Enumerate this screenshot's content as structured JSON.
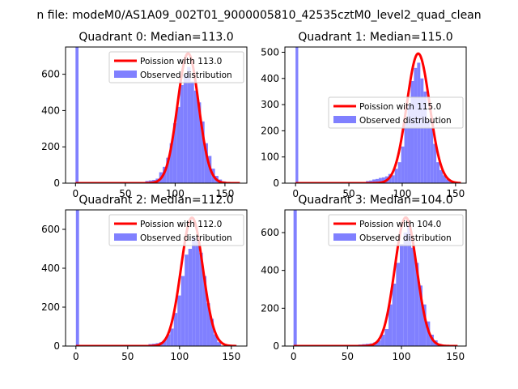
{
  "figure": {
    "suptitle": "n file: modeM0/AS1A09_002T01_9000005810_42535cztM0_level2_quad_clean"
  },
  "colors": {
    "hist": "#8080ff",
    "poisson": "#ff0000",
    "axis": "#000000",
    "legend_border": "#cccccc"
  },
  "chart_data": [
    {
      "type": "histogram+line",
      "title": "Quadrant 0: Median=113.0",
      "xlim": [
        -10,
        172
      ],
      "ylim": [
        0,
        750
      ],
      "xticks": [
        0,
        50,
        100,
        150
      ],
      "xtick_labels": [
        "0",
        "50",
        "100",
        "150"
      ],
      "yticks": [
        0,
        200,
        400,
        600
      ],
      "ytick_labels": [
        "0",
        "200",
        "400",
        "600"
      ],
      "legend": {
        "position": "upper right",
        "entries": [
          "Poission with 113.0",
          "Observed distribution"
        ]
      },
      "poisson_mean": 113.0,
      "poisson_peak": 715,
      "line_x_range": [
        0,
        165
      ],
      "zero_bin": {
        "x0": 0,
        "x1": 3,
        "value": 750
      },
      "bin_width": 3.5,
      "bins": [
        {
          "x": 70,
          "v": 12
        },
        {
          "x": 73.5,
          "v": 15
        },
        {
          "x": 77,
          "v": 18
        },
        {
          "x": 80.5,
          "v": 25
        },
        {
          "x": 84,
          "v": 60
        },
        {
          "x": 87.5,
          "v": 90
        },
        {
          "x": 91,
          "v": 140
        },
        {
          "x": 94.5,
          "v": 220
        },
        {
          "x": 98,
          "v": 330
        },
        {
          "x": 101.5,
          "v": 420
        },
        {
          "x": 105,
          "v": 540
        },
        {
          "x": 108.5,
          "v": 600
        },
        {
          "x": 112,
          "v": 640
        },
        {
          "x": 115.5,
          "v": 560
        },
        {
          "x": 119,
          "v": 510
        },
        {
          "x": 122.5,
          "v": 445
        },
        {
          "x": 126,
          "v": 340
        },
        {
          "x": 129.5,
          "v": 220
        },
        {
          "x": 133,
          "v": 150
        },
        {
          "x": 136.5,
          "v": 80
        },
        {
          "x": 140,
          "v": 40
        },
        {
          "x": 143.5,
          "v": 20
        },
        {
          "x": 147,
          "v": 10
        }
      ]
    },
    {
      "type": "histogram+line",
      "title": "Quadrant 1: Median=115.0",
      "xlim": [
        -10,
        160
      ],
      "ylim": [
        0,
        520
      ],
      "xticks": [
        0,
        50,
        100,
        150
      ],
      "xtick_labels": [
        "0",
        "50",
        "100",
        "150"
      ],
      "yticks": [
        0,
        100,
        200,
        300,
        400,
        500
      ],
      "ytick_labels": [
        "0",
        "100",
        "200",
        "300",
        "400",
        "500"
      ],
      "legend": {
        "position": "center right",
        "entries": [
          "Poission with 115.0",
          "Observed distribution"
        ]
      },
      "poisson_mean": 115.0,
      "poisson_peak": 495,
      "line_x_range": [
        0,
        155
      ],
      "zero_bin": {
        "x0": 0,
        "x1": 2.5,
        "value": 520
      },
      "bin_width": 3,
      "bins": [
        {
          "x": 66,
          "v": 8
        },
        {
          "x": 69,
          "v": 10
        },
        {
          "x": 72,
          "v": 14
        },
        {
          "x": 75,
          "v": 16
        },
        {
          "x": 78,
          "v": 20
        },
        {
          "x": 81,
          "v": 22
        },
        {
          "x": 84,
          "v": 26
        },
        {
          "x": 87,
          "v": 35
        },
        {
          "x": 90,
          "v": 30
        },
        {
          "x": 93,
          "v": 55
        },
        {
          "x": 96,
          "v": 80
        },
        {
          "x": 99,
          "v": 140
        },
        {
          "x": 102,
          "v": 230
        },
        {
          "x": 105,
          "v": 300
        },
        {
          "x": 108,
          "v": 390
        },
        {
          "x": 111,
          "v": 440
        },
        {
          "x": 114,
          "v": 460
        },
        {
          "x": 117,
          "v": 400
        },
        {
          "x": 120,
          "v": 350
        },
        {
          "x": 123,
          "v": 240
        },
        {
          "x": 126,
          "v": 210
        },
        {
          "x": 129,
          "v": 150
        },
        {
          "x": 132,
          "v": 80
        },
        {
          "x": 135,
          "v": 50
        },
        {
          "x": 138,
          "v": 30
        },
        {
          "x": 141,
          "v": 15
        },
        {
          "x": 144,
          "v": 8
        }
      ]
    },
    {
      "type": "histogram+line",
      "title": "Quadrant 2: Median=112.0",
      "xlim": [
        -10,
        165
      ],
      "ylim": [
        0,
        700
      ],
      "xticks": [
        0,
        50,
        100,
        150
      ],
      "xtick_labels": [
        "0",
        "50",
        "100",
        "150"
      ],
      "yticks": [
        0,
        200,
        400,
        600
      ],
      "ytick_labels": [
        "0",
        "200",
        "400",
        "600"
      ],
      "legend": {
        "position": "upper right",
        "entries": [
          "Poission with 112.0",
          "Observed distribution"
        ]
      },
      "poisson_mean": 112.0,
      "poisson_peak": 660,
      "line_x_range": [
        0,
        155
      ],
      "zero_bin": {
        "x0": 0,
        "x1": 3,
        "value": 700
      },
      "bin_width": 3.5,
      "bins": [
        {
          "x": 70,
          "v": 10
        },
        {
          "x": 73.5,
          "v": 12
        },
        {
          "x": 77,
          "v": 15
        },
        {
          "x": 80.5,
          "v": 20
        },
        {
          "x": 84,
          "v": 30
        },
        {
          "x": 87.5,
          "v": 60
        },
        {
          "x": 91,
          "v": 90
        },
        {
          "x": 94.5,
          "v": 170
        },
        {
          "x": 98,
          "v": 260
        },
        {
          "x": 101.5,
          "v": 360
        },
        {
          "x": 105,
          "v": 470
        },
        {
          "x": 108.5,
          "v": 500
        },
        {
          "x": 112,
          "v": 560
        },
        {
          "x": 115.5,
          "v": 540
        },
        {
          "x": 119,
          "v": 480
        },
        {
          "x": 122.5,
          "v": 360
        },
        {
          "x": 126,
          "v": 220
        },
        {
          "x": 129.5,
          "v": 140
        },
        {
          "x": 133,
          "v": 60
        },
        {
          "x": 136.5,
          "v": 20
        }
      ]
    },
    {
      "type": "histogram+line",
      "title": "Quadrant 3: Median=104.0",
      "xlim": [
        -8,
        160
      ],
      "ylim": [
        0,
        720
      ],
      "xticks": [
        0,
        50,
        100,
        150
      ],
      "xtick_labels": [
        "0",
        "50",
        "100",
        "150"
      ],
      "yticks": [
        0,
        200,
        400,
        600
      ],
      "ytick_labels": [
        "0",
        "200",
        "400",
        "600"
      ],
      "legend": {
        "position": "upper right",
        "entries": [
          "Poission with 104.0",
          "Observed distribution"
        ]
      },
      "poisson_mean": 104.0,
      "poisson_peak": 680,
      "line_x_range": [
        0,
        152
      ],
      "zero_bin": {
        "x0": 0,
        "x1": 3,
        "value": 720
      },
      "bin_width": 3.5,
      "bins": [
        {
          "x": 60,
          "v": 8
        },
        {
          "x": 63.5,
          "v": 10
        },
        {
          "x": 67,
          "v": 12
        },
        {
          "x": 70.5,
          "v": 14
        },
        {
          "x": 74,
          "v": 20
        },
        {
          "x": 77.5,
          "v": 30
        },
        {
          "x": 81,
          "v": 60
        },
        {
          "x": 84.5,
          "v": 90
        },
        {
          "x": 88,
          "v": 220
        },
        {
          "x": 91.5,
          "v": 330
        },
        {
          "x": 95,
          "v": 440
        },
        {
          "x": 98.5,
          "v": 540
        },
        {
          "x": 102,
          "v": 600
        },
        {
          "x": 105.5,
          "v": 640
        },
        {
          "x": 109,
          "v": 520
        },
        {
          "x": 112.5,
          "v": 440
        },
        {
          "x": 116,
          "v": 320
        },
        {
          "x": 119.5,
          "v": 220
        },
        {
          "x": 123,
          "v": 130
        },
        {
          "x": 126.5,
          "v": 60
        },
        {
          "x": 130,
          "v": 30
        },
        {
          "x": 133.5,
          "v": 12
        }
      ]
    }
  ]
}
